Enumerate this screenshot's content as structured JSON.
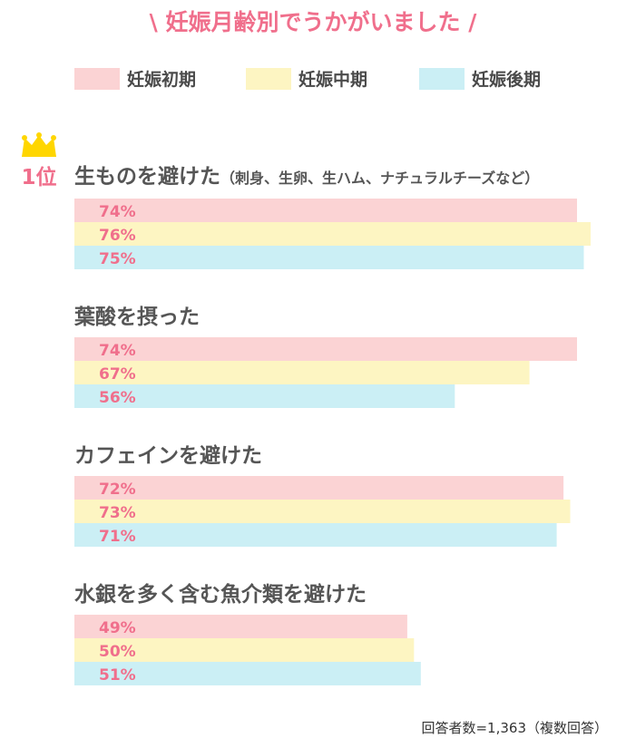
{
  "chart_data": {
    "type": "bar",
    "orientation": "horizontal",
    "title": "\\ 妊娠月齢別でうかがいました /",
    "series": [
      {
        "name": "妊娠初期",
        "color": "#fbd3d4"
      },
      {
        "name": "妊娠中期",
        "color": "#fdf5c2"
      },
      {
        "name": "妊娠後期",
        "color": "#cbeff5"
      }
    ],
    "xlim": [
      0,
      100
    ],
    "categories": [
      {
        "label": "生ものを避けた",
        "sub": "（刺身、生卵、生ハム、ナチュラルチーズなど）",
        "rank": "1位",
        "values": [
          74,
          76,
          75
        ],
        "value_labels": [
          "74%",
          "76%",
          "75%"
        ]
      },
      {
        "label": "葉酸を摂った",
        "sub": "",
        "rank": "",
        "values": [
          74,
          67,
          56
        ],
        "value_labels": [
          "74%",
          "67%",
          "56%"
        ]
      },
      {
        "label": "カフェインを避けた",
        "sub": "",
        "rank": "",
        "values": [
          72,
          73,
          71
        ],
        "value_labels": [
          "72%",
          "73%",
          "71%"
        ]
      },
      {
        "label": "水銀を多く含む魚介類を避けた",
        "sub": "",
        "rank": "",
        "values": [
          49,
          50,
          51
        ],
        "value_labels": [
          "49%",
          "50%",
          "51%"
        ]
      }
    ],
    "legend_position": "top",
    "grid": false,
    "footnote": "回答者数=1,363（複数回答）",
    "crown_icon": "crown-icon",
    "crown_color": "#ffd600"
  }
}
